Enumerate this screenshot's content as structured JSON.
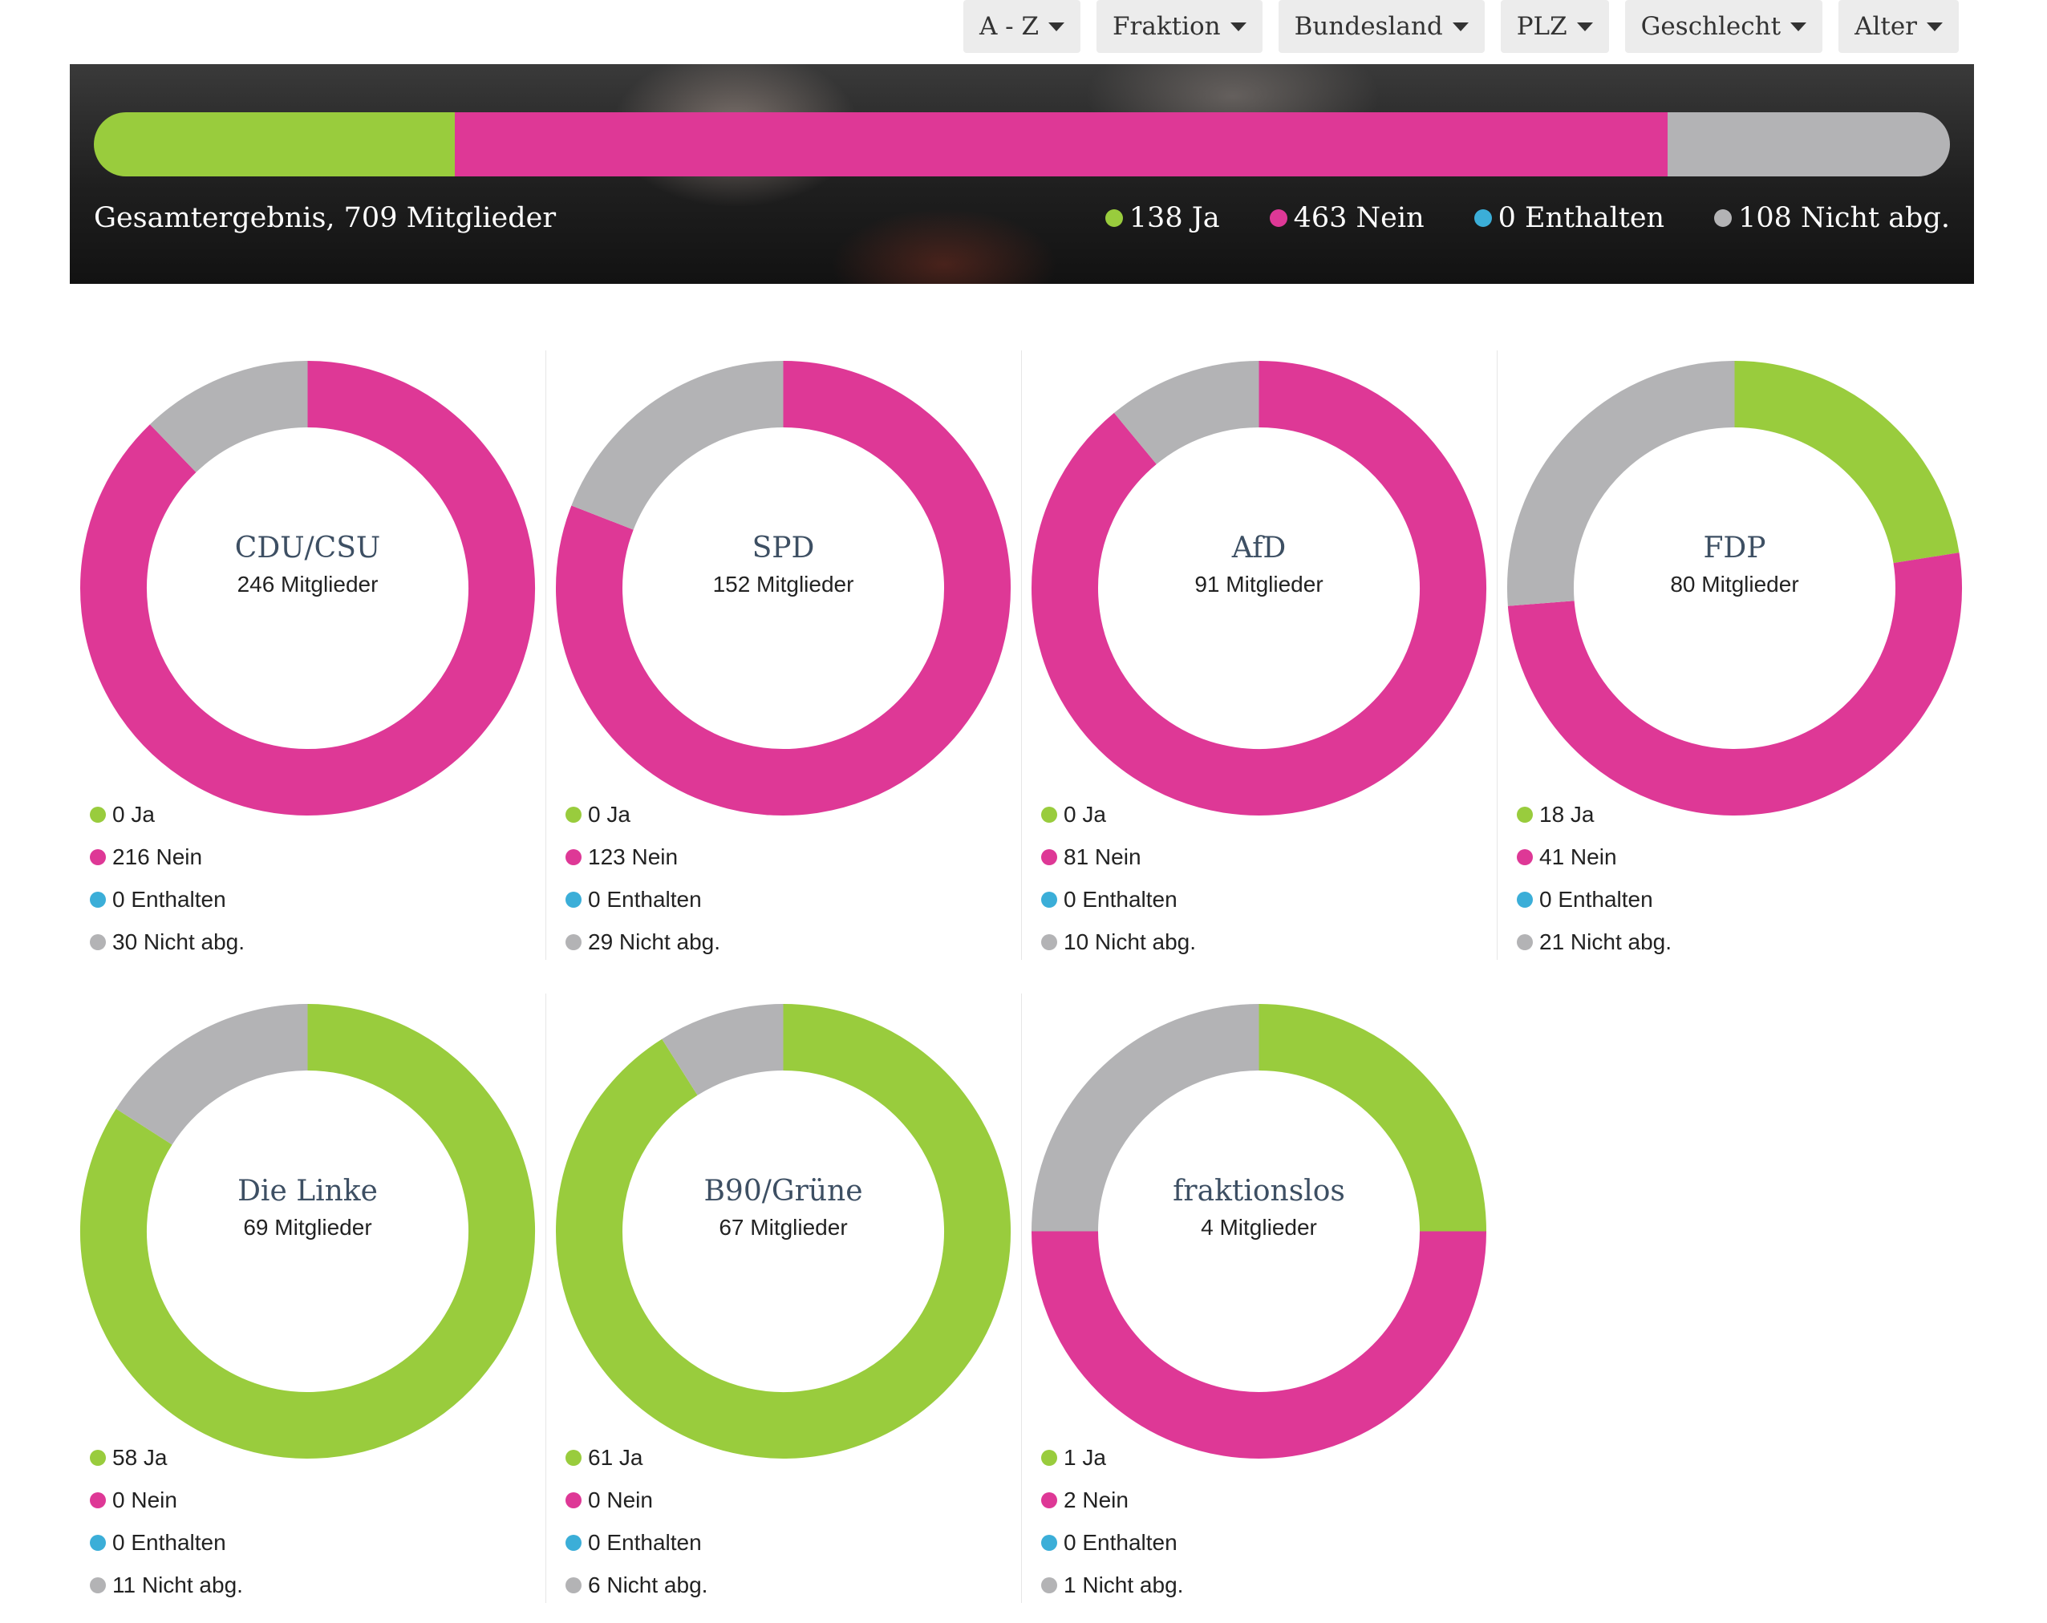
{
  "filters": [
    "A - Z",
    "Fraktion",
    "Bundesland",
    "PLZ",
    "Geschlecht",
    "Alter"
  ],
  "colors": {
    "ja": "#99cc3d",
    "nein": "#de3896",
    "enthalten": "#3baed8",
    "nicht_abg": "#b3b3b5"
  },
  "total": {
    "label": "Gesamtergebnis, 709 Mitglieder",
    "legend": [
      "138 Ja",
      "463 Nein",
      "0 Enthalten",
      "108 Nicht abg."
    ]
  },
  "chart_data": {
    "type": "pie",
    "variant": "donut",
    "overall": {
      "categories": [
        "Ja",
        "Nein",
        "Enthalten",
        "Nicht abg."
      ],
      "values": [
        138,
        463,
        0,
        108
      ]
    },
    "categories": [
      "Ja",
      "Nein",
      "Enthalten",
      "Nicht abg."
    ],
    "parties": [
      {
        "name": "CDU/CSU",
        "members": "246 Mitglieder",
        "values": [
          0,
          216,
          0,
          30
        ],
        "legend": [
          "0 Ja",
          "216 Nein",
          "0 Enthalten",
          "30 Nicht abg."
        ]
      },
      {
        "name": "SPD",
        "members": "152 Mitglieder",
        "values": [
          0,
          123,
          0,
          29
        ],
        "legend": [
          "0 Ja",
          "123 Nein",
          "0 Enthalten",
          "29 Nicht abg."
        ]
      },
      {
        "name": "AfD",
        "members": "91 Mitglieder",
        "values": [
          0,
          81,
          0,
          10
        ],
        "legend": [
          "0 Ja",
          "81 Nein",
          "0 Enthalten",
          "10 Nicht abg."
        ]
      },
      {
        "name": "FDP",
        "members": "80 Mitglieder",
        "values": [
          18,
          41,
          0,
          21
        ],
        "legend": [
          "18 Ja",
          "41 Nein",
          "0 Enthalten",
          "21 Nicht abg."
        ]
      },
      {
        "name": "Die Linke",
        "members": "69 Mitglieder",
        "values": [
          58,
          0,
          0,
          11
        ],
        "legend": [
          "58 Ja",
          "0 Nein",
          "0 Enthalten",
          "11 Nicht abg."
        ]
      },
      {
        "name": "B90/Grüne",
        "members": "67 Mitglieder",
        "values": [
          61,
          0,
          0,
          6
        ],
        "legend": [
          "61 Ja",
          "0 Nein",
          "0 Enthalten",
          "6 Nicht abg."
        ]
      },
      {
        "name": "fraktionslos",
        "members": "4 Mitglieder",
        "values": [
          1,
          2,
          0,
          1
        ],
        "legend": [
          "1 Ja",
          "2 Nein",
          "0 Enthalten",
          "1 Nicht abg."
        ]
      }
    ]
  }
}
